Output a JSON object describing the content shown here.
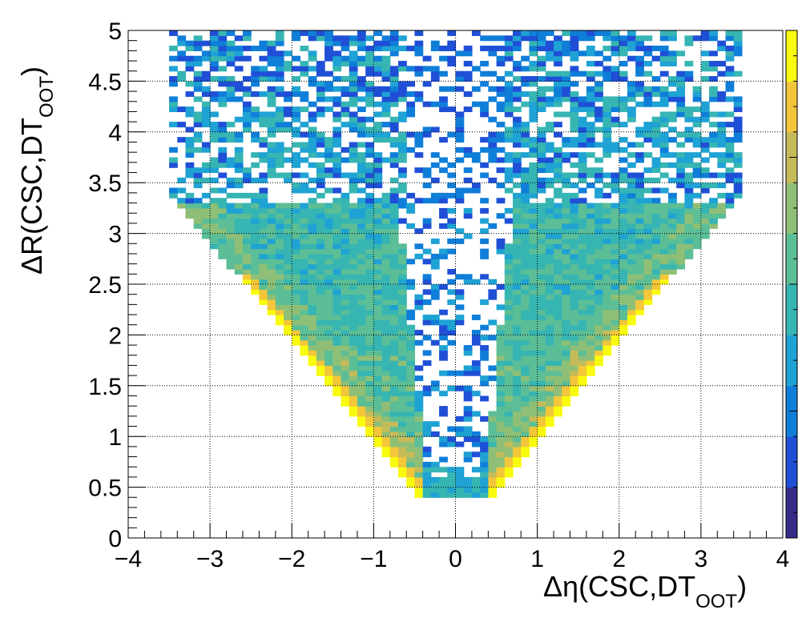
{
  "chart_data": {
    "type": "heatmap",
    "xlabel": {
      "main": "Δη(CSC,DT",
      "sub": "OOT",
      "close": ")"
    },
    "ylabel": {
      "main": "ΔR(CSC,DT",
      "sub": "OOT",
      "close": ")"
    },
    "xlim": [
      -4,
      4
    ],
    "ylim": [
      0,
      5
    ],
    "x_ticks": [
      -4,
      -3,
      -2,
      -1,
      0,
      1,
      2,
      3,
      4
    ],
    "x_tick_labels": [
      "−4",
      "−3",
      "−2",
      "−1",
      "0",
      "1",
      "2",
      "3",
      "4"
    ],
    "y_ticks": [
      0,
      0.5,
      1,
      1.5,
      2,
      2.5,
      3,
      3.5,
      4,
      4.5,
      5
    ],
    "y_tick_labels": [
      "0",
      "0.5",
      "1",
      "1.5",
      "2",
      "2.5",
      "3",
      "3.5",
      "4",
      "4.5",
      "5"
    ],
    "grid": true,
    "bins": {
      "x_min": -4,
      "x_max": 4,
      "nx": 80,
      "y_min": 0,
      "y_max": 5,
      "ny": 100
    },
    "populated_region": {
      "delta_r_min": 0.4,
      "edge_slope": 0.98,
      "delta_eta_half_width_at_top": 3.45,
      "inner_wedge_half_width": 0.3
    },
    "colormap": [
      "#352a87",
      "#1f4fd6",
      "#0f7ed9",
      "#1fa2d4",
      "#36b5b3",
      "#5cbe96",
      "#8fbf76",
      "#c6bb59",
      "#f4c63a",
      "#f9fb0e"
    ],
    "colorbar": {
      "position": "right"
    }
  }
}
